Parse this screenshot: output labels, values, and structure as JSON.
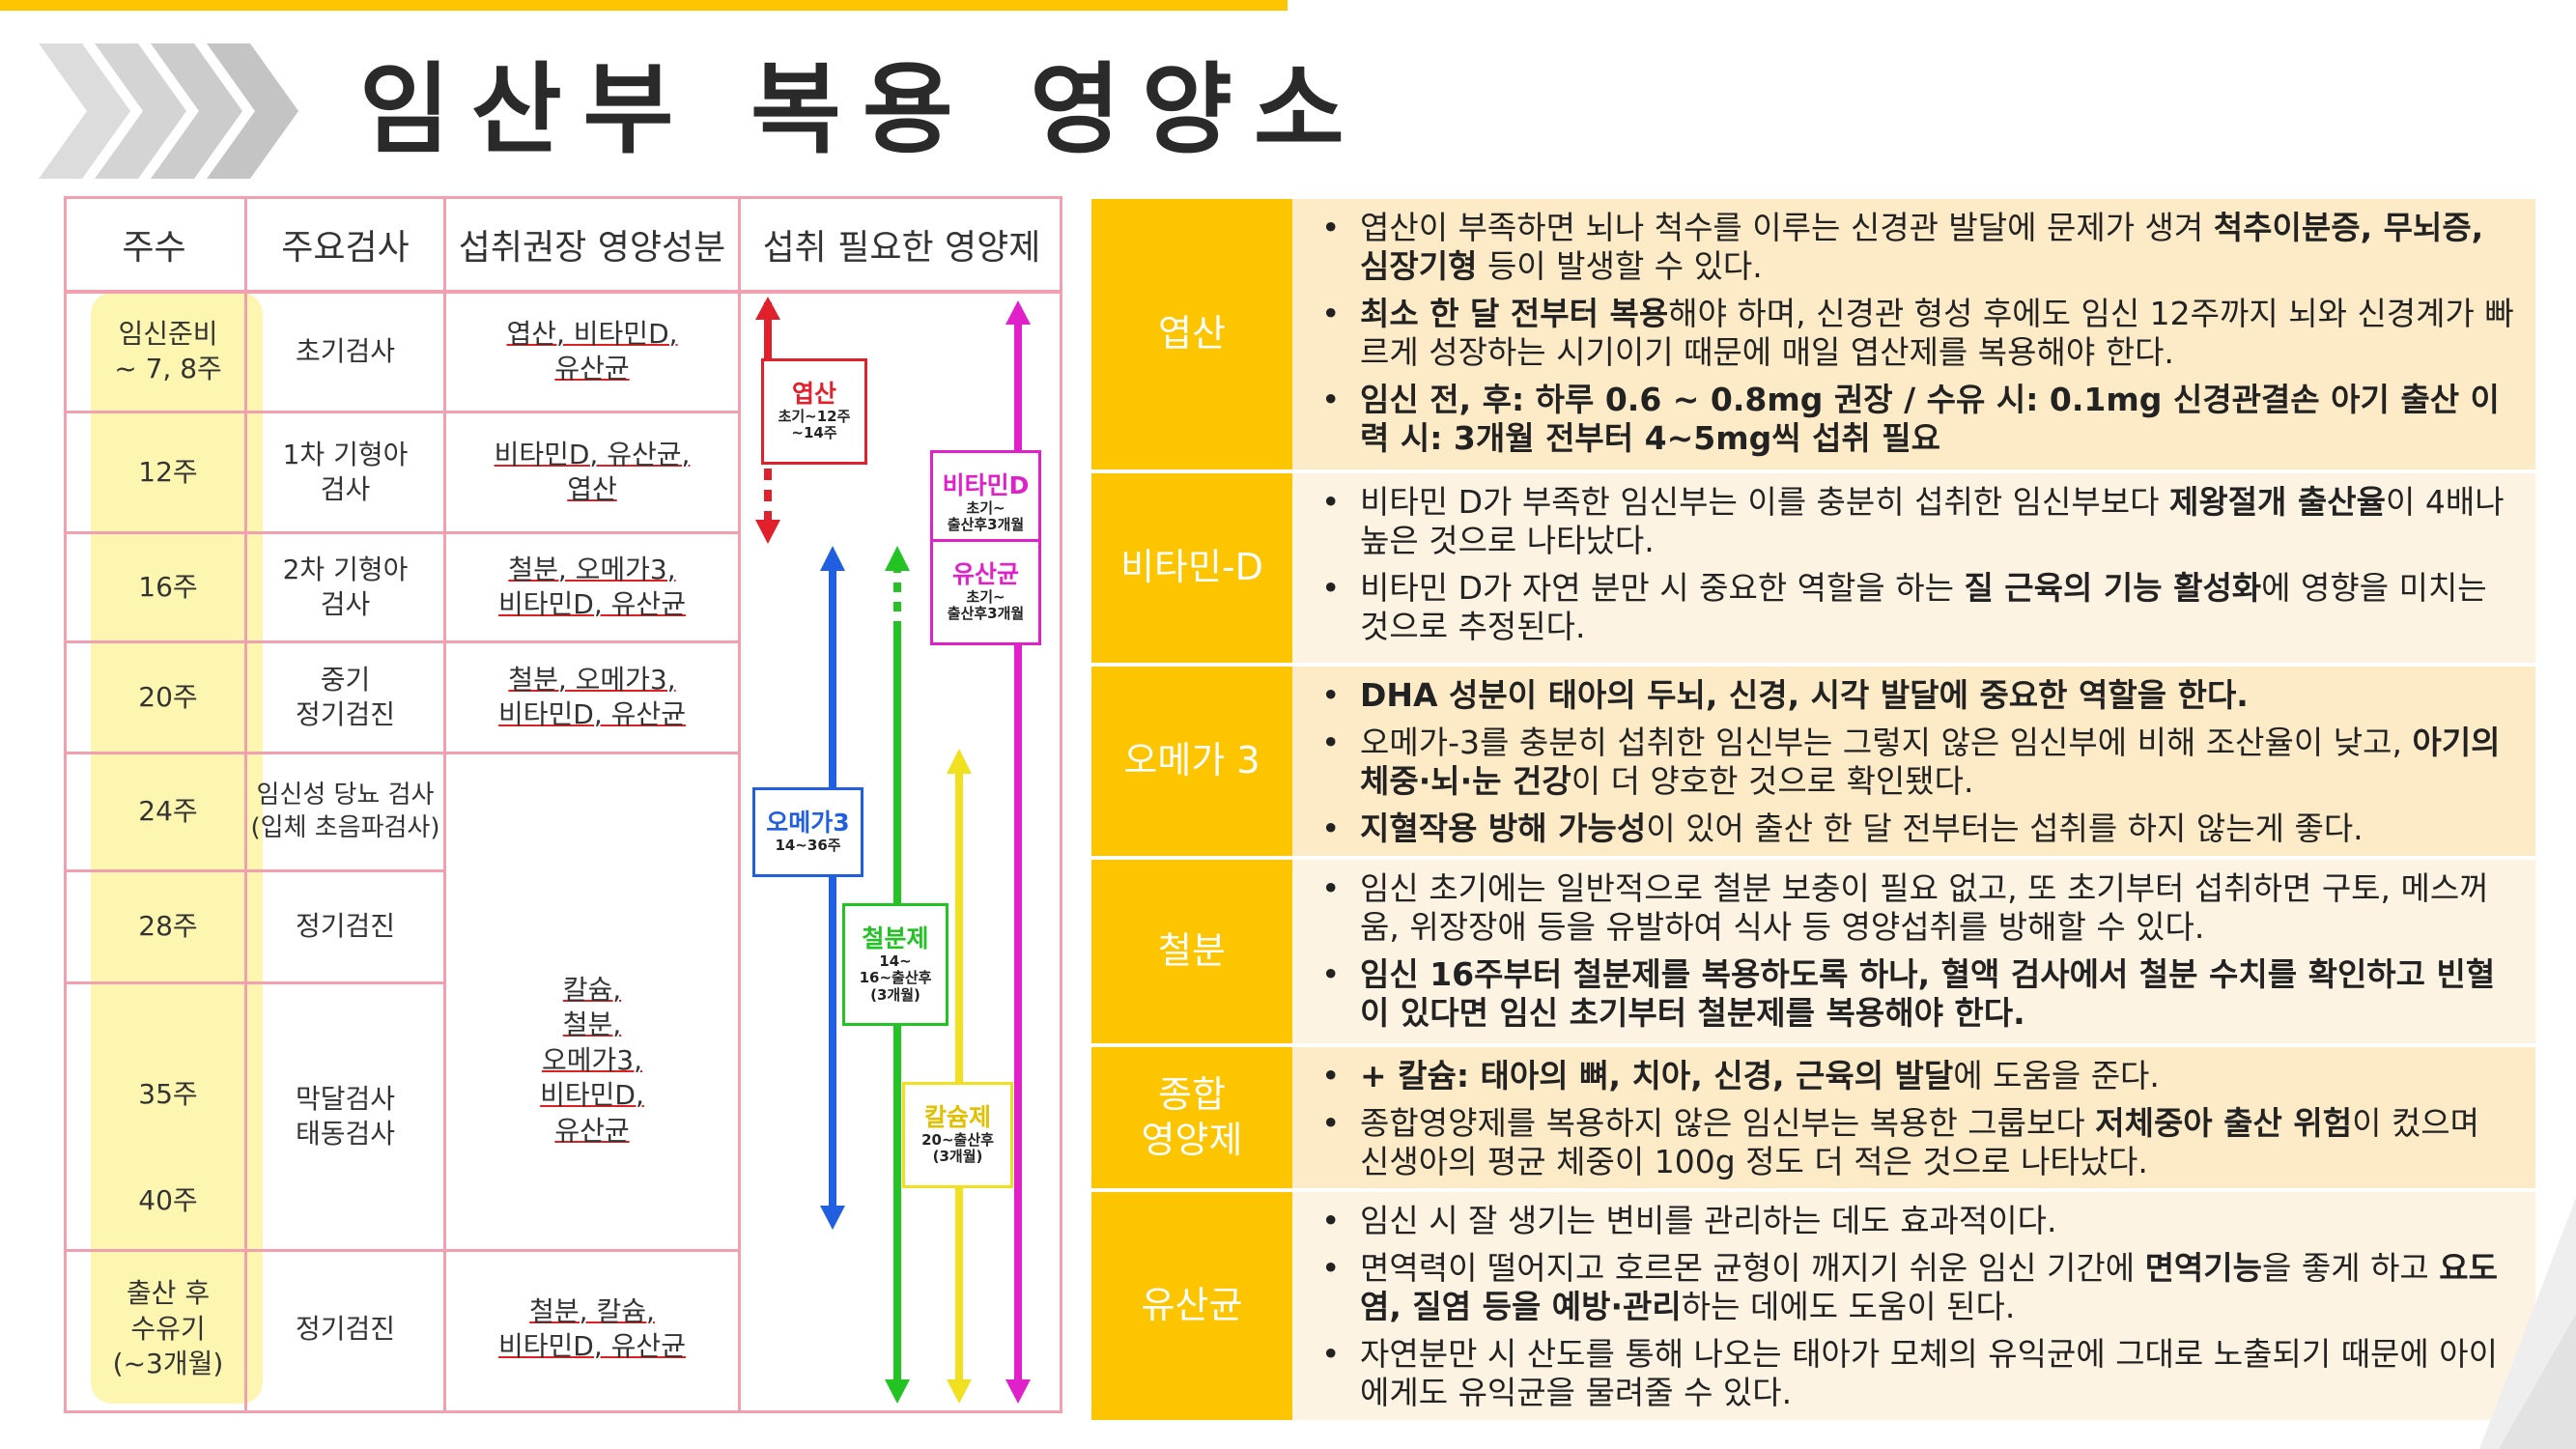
{
  "title": "임산부 복용 영양소",
  "chart": {
    "headers": [
      "주수",
      "주요검사",
      "섭취권장 영양성분",
      "섭취 필요한 영양제"
    ],
    "weeks": [
      "임신준비\n~ 7, 8주",
      "12주",
      "16주",
      "20주",
      "24주",
      "28주",
      "35주",
      "40주",
      "출산 후\n수유기\n(~3개월)"
    ],
    "exams": [
      "초기검사",
      "1차 기형아\n검사",
      "2차 기형아\n검사",
      "중기\n정기검진",
      "임신성 당뇨 검사\n(입체 초음파검사)",
      "정기검진",
      "막달검사\n태동검사",
      "정기검진"
    ],
    "nutrients": [
      "엽산, 비타민D,\n유산균",
      "비타민D, 유산균,\n엽산",
      "철분, 오메가3,\n비타민D, 유산균",
      "철분, 오메가3,\n비타민D, 유산균",
      "칼슘,\n철분,\n오메가3,\n비타민D,\n유산균",
      "철분, 칼슘,\n비타민D, 유산균"
    ],
    "arrows": [
      {
        "name": "엽산",
        "period": "초기~12주\n~14주",
        "color": "#e0202a"
      },
      {
        "name": "비타민D",
        "period": "초기~\n출산후3개월",
        "color": "#e020c8"
      },
      {
        "name": "유산균",
        "period": "초기~\n출산후3개월",
        "color": "#e020c8"
      },
      {
        "name": "오메가3",
        "period": "14~36주",
        "color": "#1f5fe0"
      },
      {
        "name": "철분제",
        "period": "14~\n16~출산후\n(3개월)",
        "color": "#22c322"
      },
      {
        "name": "칼슘제",
        "period": "20~출산후\n(3개월)",
        "color": "#f0e020"
      }
    ]
  },
  "rows": [
    {
      "name": "엽산",
      "bullets": [
        [
          {
            "t": "엽산이 부족하면 뇌나 척수를 이루는 신경관 발달에 문제가 생겨 "
          },
          {
            "t": "척추이분증, 무뇌증, 심장기형",
            "b": true
          },
          {
            "t": " 등이 발생할 수 있다."
          }
        ],
        [
          {
            "t": "최소 한 달 전부터 복용",
            "b": true
          },
          {
            "t": "해야 하며, 신경관 형성 후에도 임신 12주까지 뇌와 신경계가 빠르게 성장하는 시기이기 때문에 매일 엽산제를 복용해야 한다."
          }
        ],
        [
          {
            "t": "임신 전, 후: 하루 0.6 ~ 0.8mg 권장 / 수유 시: 0.1mg 신경관결손 아기 출산 이력 시: 3개월 전부터 4~5mg씩 섭취 필요",
            "b": true
          }
        ]
      ]
    },
    {
      "name": "비타민-D",
      "bullets": [
        [
          {
            "t": "비타민 D가 부족한 임신부는 이를 충분히 섭취한 임신부보다 "
          },
          {
            "t": "제왕절개 출산율",
            "b": true
          },
          {
            "t": "이 4배나 높은 것으로 나타났다."
          }
        ],
        [
          {
            "t": "비타민 D가 자연 분만 시 중요한 역할을 하는 "
          },
          {
            "t": "질 근육의 기능 활성화",
            "b": true
          },
          {
            "t": "에 영향을 미치는 것으로 추정된다."
          }
        ]
      ]
    },
    {
      "name": "오메가 3",
      "bullets": [
        [
          {
            "t": "DHA 성분이 태아의 두뇌, 신경, 시각 발달에 중요한 역할을 한다.",
            "b": true
          }
        ],
        [
          {
            "t": "오메가-3를 충분히 섭취한 임신부는 그렇지 않은 임신부에 비해 조산율이 낮고, "
          },
          {
            "t": "아기의 체중·뇌·눈 건강",
            "b": true
          },
          {
            "t": "이 더 양호한 것으로 확인됐다."
          }
        ],
        [
          {
            "t": "지혈작용 방해 가능성",
            "b": true
          },
          {
            "t": "이 있어 출산 한 달 전부터는 섭취를 하지 않는게 좋다."
          }
        ]
      ]
    },
    {
      "name": "철분",
      "bullets": [
        [
          {
            "t": "임신 초기에는 일반적으로 철분 보충이 필요 없고, 또 초기부터 섭취하면 구토, 메스꺼움, 위장장애 등을 유발하여 식사 등 영양섭취를 방해할 수 있다."
          }
        ],
        [
          {
            "t": "임신 16주부터 철분제를 복용하도록 하나, 혈액 검사에서 철분 수치를 확인하고 빈혈이 있다면 임신 초기부터 철분제를 복용해야 한다.",
            "b": true
          }
        ]
      ]
    },
    {
      "name": "종합\n영양제",
      "bullets": [
        [
          {
            "t": "+ 칼슘: 태아의 뼈, 치아, 신경, 근육의 발달",
            "b": true
          },
          {
            "t": "에 도움을 준다."
          }
        ],
        [
          {
            "t": "종합영양제를 복용하지 않은 임신부는 복용한 그룹보다 "
          },
          {
            "t": "저체중아 출산 위험",
            "b": true
          },
          {
            "t": "이 컸으며 신생아의 평균 체중이 100g 정도 더 적은 것으로 나타났다."
          }
        ]
      ]
    },
    {
      "name": "유산균",
      "bullets": [
        [
          {
            "t": "임신 시 잘 생기는 변비를 관리하는 데도 효과적이다."
          }
        ],
        [
          {
            "t": "면역력이 떨어지고 호르몬 균형이 깨지기 쉬운 임신 기간에 "
          },
          {
            "t": "면역기능",
            "b": true
          },
          {
            "t": "을 좋게 하고 "
          },
          {
            "t": "요도염, 질염 등을 예방·관리",
            "b": true
          },
          {
            "t": "하는 데에도 도움이 된다."
          }
        ],
        [
          {
            "t": "자연분만 시 산도를 통해 나오는 태아가 모체의 유익균에 그대로 노출되기 때문에 아이에게도 유익균을 물려줄 수 있다."
          }
        ]
      ]
    }
  ]
}
